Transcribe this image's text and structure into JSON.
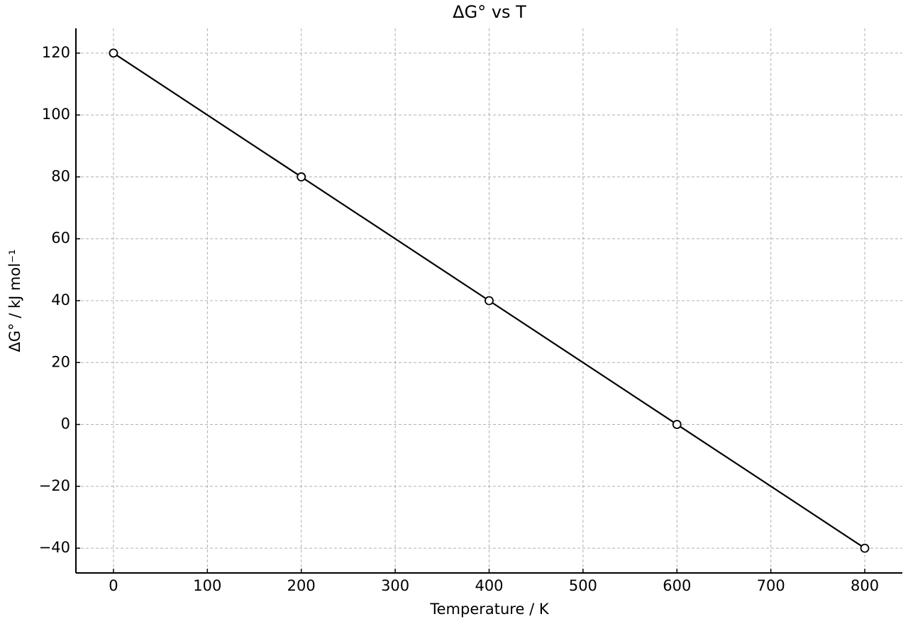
{
  "chart_data": {
    "type": "line",
    "title": "ΔG° vs T",
    "x_label": "Temperature / K",
    "y_label": "ΔG° / kJ mol⁻¹",
    "x": [
      0,
      200,
      400,
      600,
      800
    ],
    "values": [
      120,
      80,
      40,
      0,
      -40
    ],
    "color": "#000000",
    "marker_fill": "#ffffff",
    "xlim": [
      -40,
      840
    ],
    "ylim": [
      -48,
      128
    ],
    "xticks": [
      0,
      100,
      200,
      300,
      400,
      500,
      600,
      700,
      800
    ],
    "yticks": [
      {
        "value": -40,
        "label": "−40"
      },
      {
        "value": -20,
        "label": "−20"
      },
      0,
      20,
      40,
      60,
      80,
      100,
      120
    ],
    "grid": true
  }
}
